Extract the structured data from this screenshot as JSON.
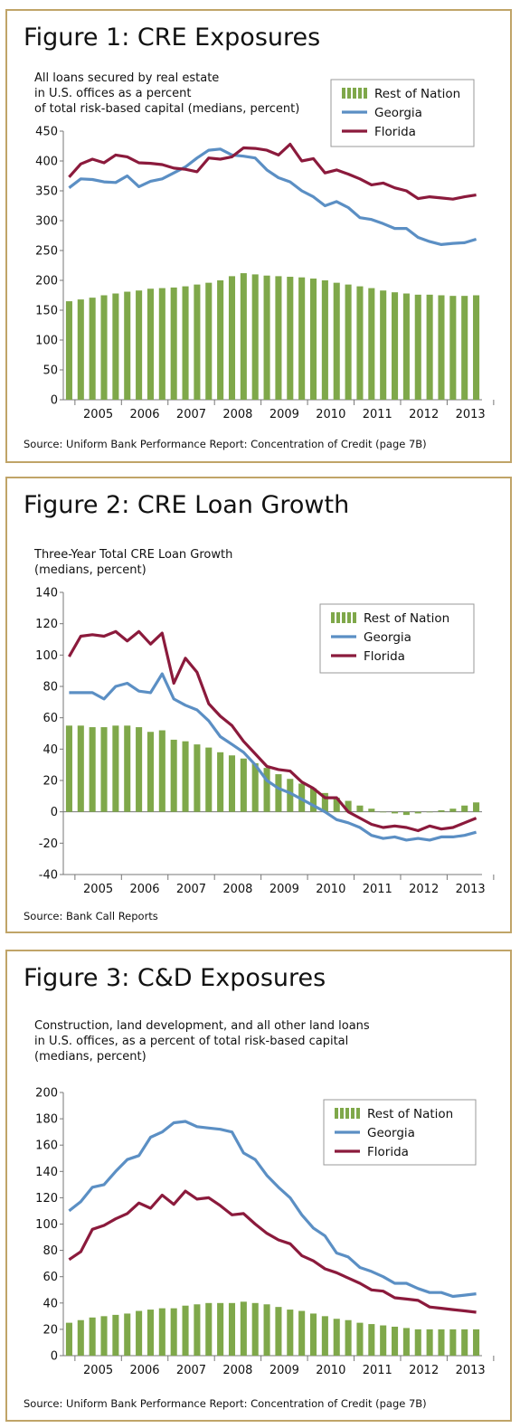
{
  "colors": {
    "rest": "#7fa84a",
    "georgia": "#5b8fc4",
    "florida": "#8b1a3c",
    "border": "#c0a468"
  },
  "year_labels": [
    "2005",
    "2006",
    "2007",
    "2008",
    "2009",
    "2010",
    "2011",
    "2012",
    "2013"
  ],
  "charts": [
    {
      "title": "Figure 1: CRE Exposures",
      "subtitle": [
        "All loans secured by real estate",
        "in U.S. offices as a percent",
        "of total risk-based capital (medians, percent)"
      ],
      "source": "Source: Uniform Bank Performance Report: Concentration of Credit (page 7B)",
      "legend": [
        "Rest of Nation",
        "Georgia",
        "Florida"
      ],
      "chart_data": {
        "type": "bar",
        "title": "Figure 1: CRE Exposures",
        "x": [
          "2004Q4",
          "2005Q1",
          "2005Q2",
          "2005Q3",
          "2005Q4",
          "2006Q1",
          "2006Q2",
          "2006Q3",
          "2006Q4",
          "2007Q1",
          "2007Q2",
          "2007Q3",
          "2007Q4",
          "2008Q1",
          "2008Q2",
          "2008Q3",
          "2008Q4",
          "2009Q1",
          "2009Q2",
          "2009Q3",
          "2009Q4",
          "2010Q1",
          "2010Q2",
          "2010Q3",
          "2010Q4",
          "2011Q1",
          "2011Q2",
          "2011Q3",
          "2011Q4",
          "2012Q1",
          "2012Q2",
          "2012Q3",
          "2012Q4",
          "2013Q1",
          "2013Q2",
          "2013Q3"
        ],
        "x_tick_labels": [
          "2005",
          "2006",
          "2007",
          "2008",
          "2009",
          "2010",
          "2011",
          "2012",
          "2013"
        ],
        "ylim": [
          0,
          450
        ],
        "yticks": [
          0,
          50,
          100,
          150,
          200,
          250,
          300,
          350,
          400,
          450
        ],
        "legend_position": "top-right",
        "series": [
          {
            "name": "Rest of Nation",
            "kind": "bar",
            "values": [
              165,
              168,
              171,
              175,
              178,
              181,
              183,
              186,
              187,
              188,
              190,
              193,
              196,
              200,
              207,
              212,
              210,
              208,
              207,
              206,
              205,
              203,
              200,
              196,
              193,
              190,
              187,
              183,
              180,
              178,
              176,
              176,
              175,
              174,
              174,
              175
            ]
          },
          {
            "name": "Georgia",
            "kind": "line",
            "values": [
              355,
              370,
              369,
              365,
              364,
              375,
              357,
              366,
              370,
              380,
              390,
              405,
              418,
              420,
              410,
              408,
              405,
              385,
              372,
              365,
              350,
              340,
              325,
              332,
              322,
              305,
              302,
              295,
              287,
              287,
              272,
              265,
              260,
              262,
              263,
              269
            ]
          },
          {
            "name": "Florida",
            "kind": "line",
            "values": [
              373,
              395,
              403,
              397,
              410,
              407,
              397,
              396,
              394,
              388,
              386,
              382,
              405,
              403,
              407,
              422,
              421,
              418,
              410,
              428,
              400,
              404,
              380,
              385,
              378,
              370,
              360,
              363,
              355,
              350,
              337,
              340,
              338,
              336,
              340,
              343
            ]
          }
        ]
      }
    },
    {
      "title": "Figure 2: CRE Loan Growth",
      "subtitle": [
        "Three-Year Total CRE Loan Growth",
        "(medians, percent)"
      ],
      "source": "Source: Bank Call Reports",
      "legend": [
        "Rest of Nation",
        "Georgia",
        "Florida"
      ],
      "chart_data": {
        "type": "bar",
        "title": "Figure 2: CRE Loan Growth",
        "x": [
          "2004Q4",
          "2005Q1",
          "2005Q2",
          "2005Q3",
          "2005Q4",
          "2006Q1",
          "2006Q2",
          "2006Q3",
          "2006Q4",
          "2007Q1",
          "2007Q2",
          "2007Q3",
          "2007Q4",
          "2008Q1",
          "2008Q2",
          "2008Q3",
          "2008Q4",
          "2009Q1",
          "2009Q2",
          "2009Q3",
          "2009Q4",
          "2010Q1",
          "2010Q2",
          "2010Q3",
          "2010Q4",
          "2011Q1",
          "2011Q2",
          "2011Q3",
          "2011Q4",
          "2012Q1",
          "2012Q2",
          "2012Q3",
          "2012Q4",
          "2013Q1",
          "2013Q2",
          "2013Q3"
        ],
        "x_tick_labels": [
          "2005",
          "2006",
          "2007",
          "2008",
          "2009",
          "2010",
          "2011",
          "2012",
          "2013"
        ],
        "ylim": [
          -40,
          140
        ],
        "yticks": [
          -40,
          -20,
          0,
          20,
          40,
          60,
          80,
          100,
          120,
          140
        ],
        "legend_position": "top-right",
        "series": [
          {
            "name": "Rest of Nation",
            "kind": "bar",
            "values": [
              55,
              55,
              54,
              54,
              55,
              55,
              54,
              51,
              52,
              46,
              45,
              43,
              41,
              38,
              36,
              34,
              31,
              28,
              24,
              21,
              18,
              15,
              12,
              9,
              7,
              4,
              2,
              0,
              -1,
              -2,
              -1,
              0,
              1,
              2,
              4,
              6
            ]
          },
          {
            "name": "Georgia",
            "kind": "line",
            "values": [
              76,
              76,
              76,
              72,
              80,
              82,
              77,
              76,
              88,
              72,
              68,
              65,
              58,
              48,
              43,
              38,
              30,
              20,
              15,
              12,
              8,
              4,
              0,
              -5,
              -7,
              -10,
              -15,
              -17,
              -16,
              -18,
              -17,
              -18,
              -16,
              -16,
              -15,
              -13
            ]
          },
          {
            "name": "Florida",
            "kind": "line",
            "values": [
              99,
              112,
              113,
              112,
              115,
              109,
              115,
              107,
              114,
              82,
              98,
              89,
              69,
              61,
              55,
              45,
              37,
              29,
              27,
              26,
              19,
              15,
              9,
              9,
              0,
              -4,
              -8,
              -10,
              -9,
              -10,
              -12,
              -9,
              -11,
              -10,
              -7,
              -4
            ]
          }
        ]
      }
    },
    {
      "title": "Figure 3: C&D Exposures",
      "subtitle": [
        "Construction, land development, and all other land loans",
        "in U.S. offices, as a percent of total risk-based capital",
        "(medians, percent)"
      ],
      "source": "Source: Uniform Bank Performance Report: Concentration of Credit (page 7B)",
      "legend": [
        "Rest of Nation",
        "Georgia",
        "Florida"
      ],
      "chart_data": {
        "type": "bar",
        "title": "Figure 3: C&D Exposures",
        "x": [
          "2004Q4",
          "2005Q1",
          "2005Q2",
          "2005Q3",
          "2005Q4",
          "2006Q1",
          "2006Q2",
          "2006Q3",
          "2006Q4",
          "2007Q1",
          "2007Q2",
          "2007Q3",
          "2007Q4",
          "2008Q1",
          "2008Q2",
          "2008Q3",
          "2008Q4",
          "2009Q1",
          "2009Q2",
          "2009Q3",
          "2009Q4",
          "2010Q1",
          "2010Q2",
          "2010Q3",
          "2010Q4",
          "2011Q1",
          "2011Q2",
          "2011Q3",
          "2011Q4",
          "2012Q1",
          "2012Q2",
          "2012Q3",
          "2012Q4",
          "2013Q1",
          "2013Q2",
          "2013Q3"
        ],
        "x_tick_labels": [
          "2005",
          "2006",
          "2007",
          "2008",
          "2009",
          "2010",
          "2011",
          "2012",
          "2013"
        ],
        "ylim": [
          0,
          200
        ],
        "yticks": [
          0,
          20,
          40,
          60,
          80,
          100,
          120,
          140,
          160,
          180,
          200
        ],
        "legend_position": "top-right",
        "series": [
          {
            "name": "Rest of Nation",
            "kind": "bar",
            "values": [
              25,
              27,
              29,
              30,
              31,
              32,
              34,
              35,
              36,
              36,
              38,
              39,
              40,
              40,
              40,
              41,
              40,
              39,
              37,
              35,
              34,
              32,
              30,
              28,
              27,
              25,
              24,
              23,
              22,
              21,
              20,
              20,
              20,
              20,
              20,
              20
            ]
          },
          {
            "name": "Georgia",
            "kind": "line",
            "values": [
              110,
              117,
              128,
              130,
              140,
              149,
              152,
              166,
              170,
              177,
              178,
              174,
              173,
              172,
              170,
              154,
              149,
              137,
              128,
              120,
              107,
              97,
              91,
              78,
              75,
              67,
              64,
              60,
              55,
              55,
              51,
              48,
              48,
              45,
              46,
              47
            ]
          },
          {
            "name": "Florida",
            "kind": "line",
            "values": [
              73,
              79,
              96,
              99,
              104,
              108,
              116,
              112,
              122,
              115,
              125,
              119,
              120,
              114,
              107,
              108,
              100,
              93,
              88,
              85,
              76,
              72,
              66,
              63,
              59,
              55,
              50,
              49,
              44,
              43,
              42,
              37,
              36,
              35,
              34,
              33
            ]
          }
        ]
      }
    }
  ]
}
